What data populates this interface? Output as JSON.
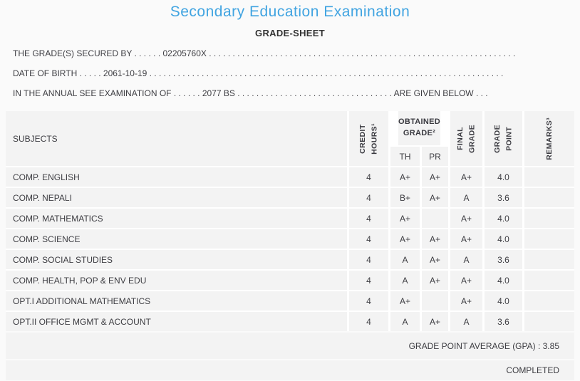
{
  "header": {
    "title": "Secondary Education Examination",
    "subtitle": "GRADE-SHEET",
    "title_color": "#41a4e1"
  },
  "info": {
    "secured_by_line": "THE GRADE(S) SECURED BY . . . . . . 02205760X . . . . . . . . . . . . . . . . . . . . . . . . . . . . . . . . . . . . . . . . . . . . . . . . . . . . . . . . . . . . . . . . .",
    "date_of_birth_line": "DATE OF BIRTH . . . . . 2061-10-19 . . . . . . . . . . . . . . . . . . . . . . . . . . . . . . . . . . . . . . . . . . . . . . . . . . . . . . . . . . . . . . . . . . . . . . . . . . .",
    "examination_line": "IN THE ANNUAL SEE EXAMINATION OF . . . . . . 2077 BS . . . . . . . . . . . . . . . . . . . . . . . . . . . . . . . . . ARE GIVEN BELOW . . ."
  },
  "table": {
    "headers": {
      "subjects": "SUBJECTS",
      "credit_hours": "CREDIT\nHOURS¹",
      "obtained_grade": "OBTAINED\nGRADE²",
      "th": "TH",
      "pr": "PR",
      "final_grade": "FINAL\nGRADE",
      "grade_point": "GRADE\nPOINT",
      "remarks": "REMARKS³"
    },
    "rows": [
      {
        "subject": "COMP. ENGLISH",
        "credit_hours": "4",
        "th": "A+",
        "pr": "A+",
        "final_grade": "A+",
        "grade_point": "4.0",
        "remarks": ""
      },
      {
        "subject": "COMP. NEPALI",
        "credit_hours": "4",
        "th": "B+",
        "pr": "A+",
        "final_grade": "A",
        "grade_point": "3.6",
        "remarks": ""
      },
      {
        "subject": "COMP. MATHEMATICS",
        "credit_hours": "4",
        "th": "A+",
        "pr": "",
        "final_grade": "A+",
        "grade_point": "4.0",
        "remarks": ""
      },
      {
        "subject": "COMP. SCIENCE",
        "credit_hours": "4",
        "th": "A+",
        "pr": "A+",
        "final_grade": "A+",
        "grade_point": "4.0",
        "remarks": ""
      },
      {
        "subject": "COMP. SOCIAL STUDIES",
        "credit_hours": "4",
        "th": "A",
        "pr": "A+",
        "final_grade": "A",
        "grade_point": "3.6",
        "remarks": ""
      },
      {
        "subject": "COMP. HEALTH, POP & ENV EDU",
        "credit_hours": "4",
        "th": "A",
        "pr": "A+",
        "final_grade": "A+",
        "grade_point": "4.0",
        "remarks": ""
      },
      {
        "subject": "OPT.I ADDITIONAL MATHEMATICS",
        "credit_hours": "4",
        "th": "A+",
        "pr": "",
        "final_grade": "A+",
        "grade_point": "4.0",
        "remarks": ""
      },
      {
        "subject": "OPT.II OFFICE MGMT & ACCOUNT",
        "credit_hours": "4",
        "th": "A",
        "pr": "A+",
        "final_grade": "A",
        "grade_point": "3.6",
        "remarks": ""
      }
    ]
  },
  "footer": {
    "gpa_line": "GRADE POINT AVERAGE (GPA) : 3.85",
    "status": "COMPLETED"
  }
}
